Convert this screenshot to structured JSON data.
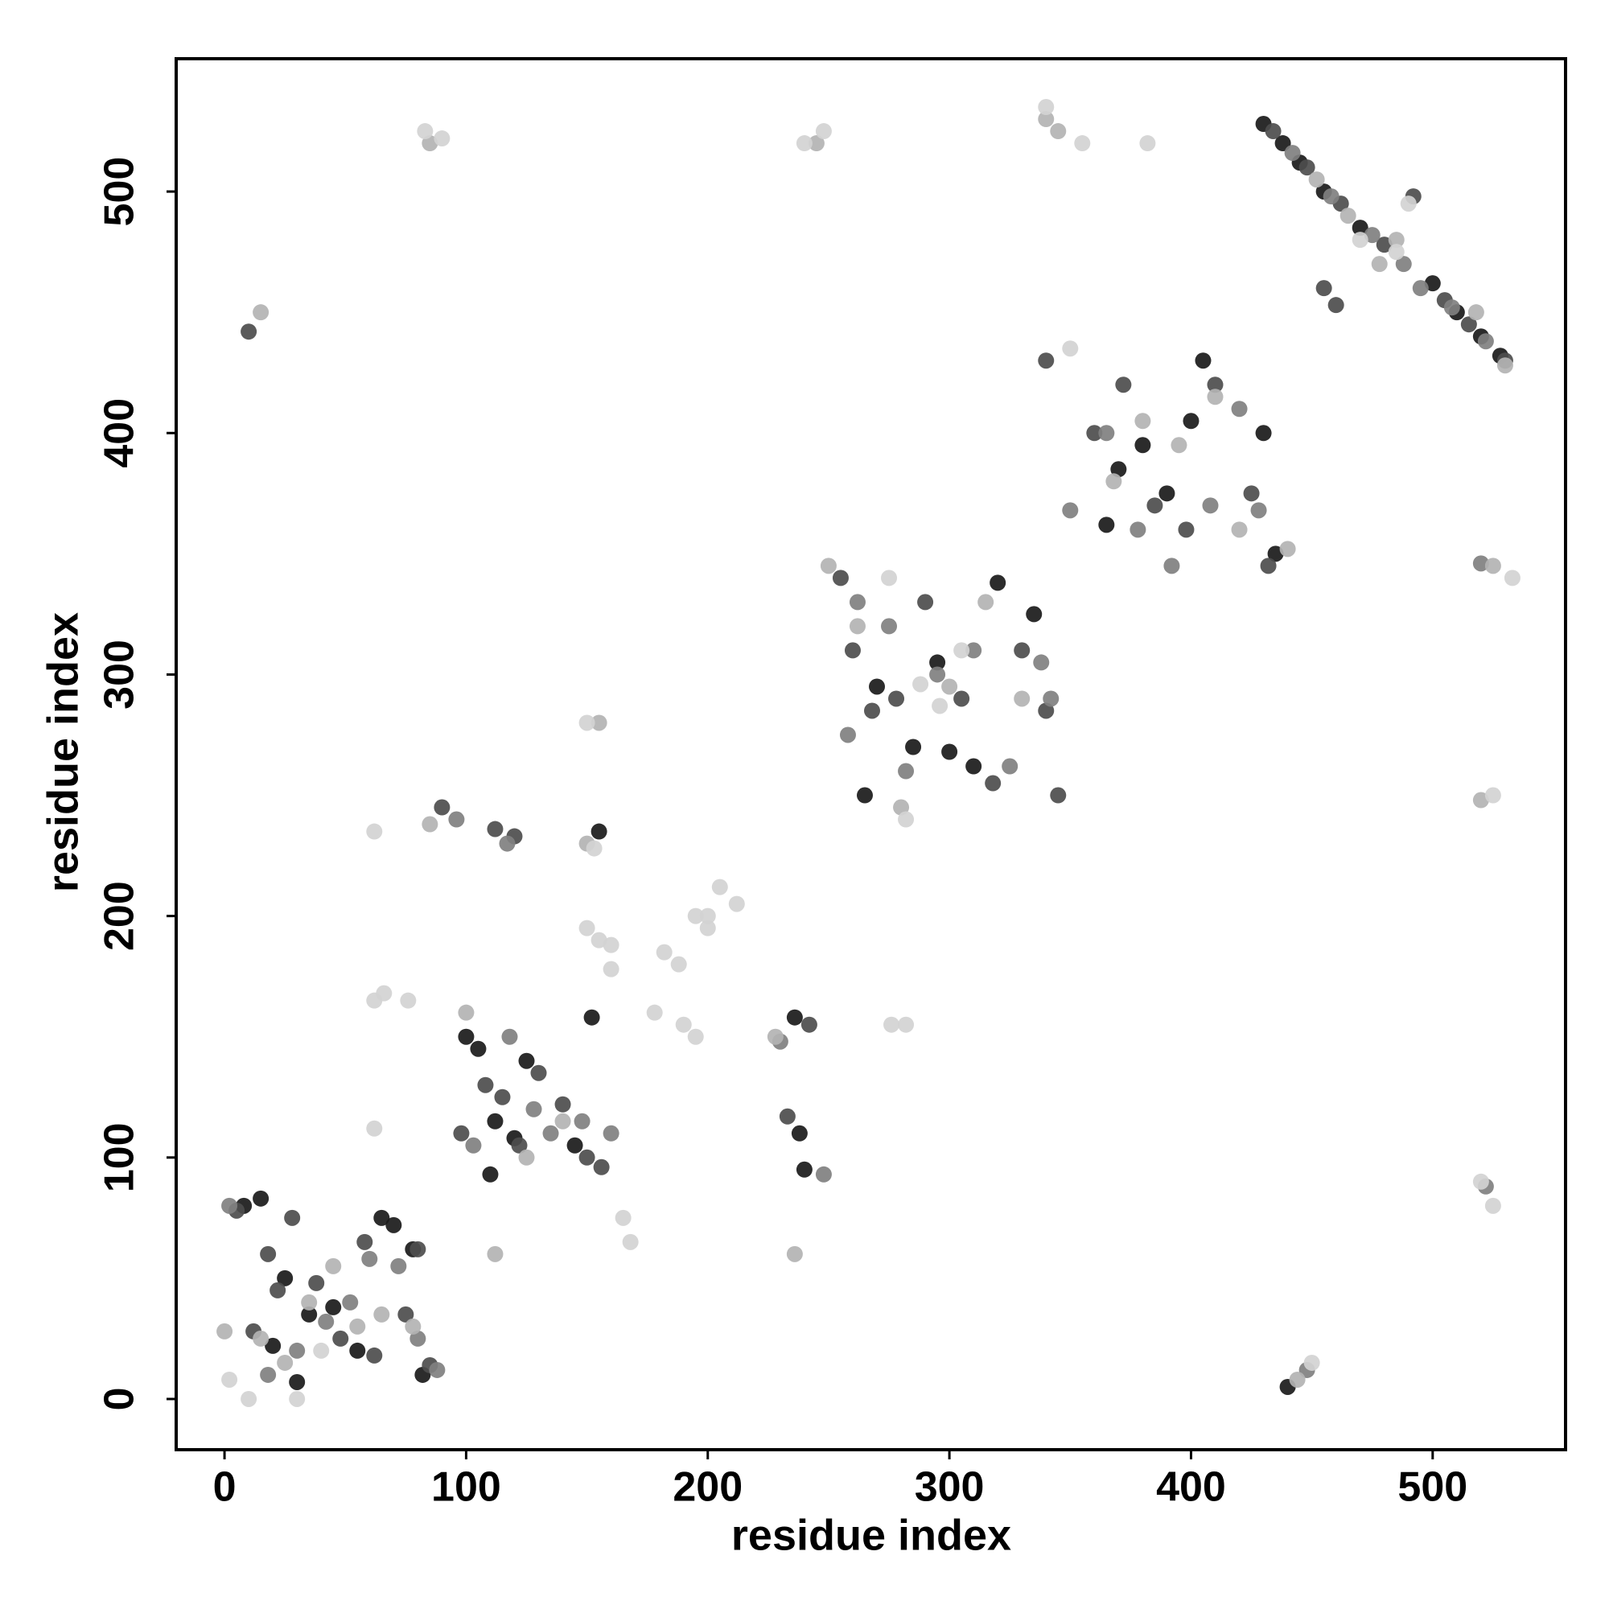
{
  "chart_data": {
    "type": "scatter",
    "xlabel": "residue index",
    "ylabel": "residue index",
    "xlim": [
      -20,
      555
    ],
    "ylim": [
      -21,
      555
    ],
    "xticks": [
      0,
      100,
      200,
      300,
      400,
      500
    ],
    "yticks": [
      0,
      100,
      200,
      300,
      400,
      500
    ],
    "grid": false,
    "series": [
      {
        "color": "#1a1a1a",
        "x": [
          8,
          15,
          20,
          25,
          30,
          35,
          45,
          55,
          65,
          70,
          78,
          82,
          100,
          105,
          110,
          112,
          120,
          125,
          145,
          152,
          155,
          236,
          238,
          240,
          265,
          270,
          285,
          295,
          300,
          310,
          320,
          335,
          365,
          370,
          380,
          390,
          400,
          405,
          430,
          435,
          430,
          438,
          445,
          455,
          470,
          500,
          510,
          520,
          528,
          440
        ],
        "values": [
          80,
          83,
          22,
          50,
          7,
          35,
          38,
          20,
          75,
          72,
          62,
          10,
          150,
          145,
          93,
          115,
          108,
          140,
          105,
          158,
          235,
          158,
          110,
          95,
          250,
          295,
          270,
          305,
          268,
          262,
          338,
          325,
          362,
          385,
          395,
          375,
          405,
          430,
          400,
          350,
          528,
          520,
          512,
          500,
          485,
          462,
          450,
          440,
          432,
          5
        ]
      },
      {
        "color": "#4d4d4d",
        "x": [
          5,
          12,
          18,
          22,
          28,
          38,
          48,
          58,
          62,
          75,
          80,
          85,
          98,
          108,
          115,
          122,
          130,
          140,
          150,
          156,
          90,
          112,
          120,
          233,
          242,
          255,
          260,
          268,
          278,
          290,
          305,
          318,
          330,
          340,
          345,
          340,
          360,
          372,
          385,
          398,
          410,
          425,
          432,
          434,
          448,
          462,
          480,
          492,
          505,
          515,
          530,
          455,
          460,
          10
        ],
        "values": [
          78,
          28,
          60,
          45,
          75,
          48,
          25,
          65,
          18,
          35,
          62,
          14,
          110,
          130,
          125,
          105,
          135,
          122,
          100,
          96,
          245,
          236,
          233,
          117,
          155,
          340,
          310,
          285,
          290,
          330,
          290,
          255,
          310,
          285,
          250,
          430,
          400,
          420,
          370,
          360,
          420,
          375,
          345,
          525,
          510,
          495,
          478,
          498,
          455,
          445,
          430,
          460,
          453,
          442
        ]
      },
      {
        "color": "#808080",
        "x": [
          2,
          18,
          30,
          42,
          52,
          60,
          72,
          80,
          88,
          103,
          118,
          128,
          135,
          148,
          160,
          96,
          117,
          230,
          248,
          258,
          262,
          275,
          282,
          295,
          310,
          325,
          338,
          342,
          350,
          365,
          378,
          392,
          408,
          420,
          428,
          442,
          458,
          475,
          488,
          495,
          508,
          522,
          448,
          520,
          522
        ],
        "values": [
          80,
          10,
          20,
          32,
          40,
          58,
          55,
          25,
          12,
          105,
          150,
          120,
          110,
          115,
          110,
          240,
          230,
          148,
          93,
          275,
          330,
          320,
          260,
          300,
          310,
          262,
          305,
          290,
          368,
          400,
          360,
          345,
          370,
          410,
          368,
          516,
          498,
          482,
          470,
          460,
          452,
          438,
          12,
          346,
          88
        ]
      },
      {
        "color": "#b3b3b3",
        "x": [
          0,
          15,
          25,
          35,
          45,
          55,
          65,
          78,
          100,
          112,
          125,
          140,
          155,
          150,
          85,
          228,
          236,
          245,
          250,
          262,
          280,
          300,
          315,
          330,
          340,
          345,
          368,
          380,
          395,
          410,
          420,
          440,
          452,
          465,
          485,
          478,
          518,
          530,
          520,
          525,
          15,
          85,
          444
        ],
        "values": [
          28,
          25,
          15,
          40,
          55,
          30,
          35,
          30,
          160,
          60,
          100,
          115,
          280,
          230,
          238,
          150,
          60,
          520,
          345,
          320,
          245,
          295,
          330,
          290,
          530,
          525,
          380,
          405,
          395,
          415,
          360,
          352,
          505,
          490,
          480,
          470,
          450,
          428,
          248,
          345,
          450,
          520,
          8
        ]
      },
      {
        "color": "#d3d3d3",
        "x": [
          2,
          10,
          30,
          40,
          62,
          62,
          66,
          76,
          62,
          150,
          155,
          160,
          160,
          165,
          168,
          178,
          182,
          188,
          190,
          195,
          195,
          200,
          205,
          212,
          200,
          153,
          150,
          240,
          248,
          276,
          282,
          288,
          296,
          305,
          275,
          282,
          350,
          355,
          340,
          83,
          90,
          382,
          490,
          485,
          470,
          533,
          525,
          525,
          520,
          450
        ],
        "values": [
          8,
          0,
          0,
          20,
          112,
          165,
          168,
          165,
          235,
          195,
          190,
          188,
          178,
          75,
          65,
          160,
          185,
          180,
          155,
          150,
          200,
          195,
          212,
          205,
          200,
          228,
          280,
          520,
          525,
          155,
          155,
          296,
          287,
          310,
          340,
          240,
          435,
          520,
          535,
          525,
          522,
          520,
          495,
          475,
          480,
          340,
          250,
          80,
          90,
          15
        ]
      }
    ]
  }
}
